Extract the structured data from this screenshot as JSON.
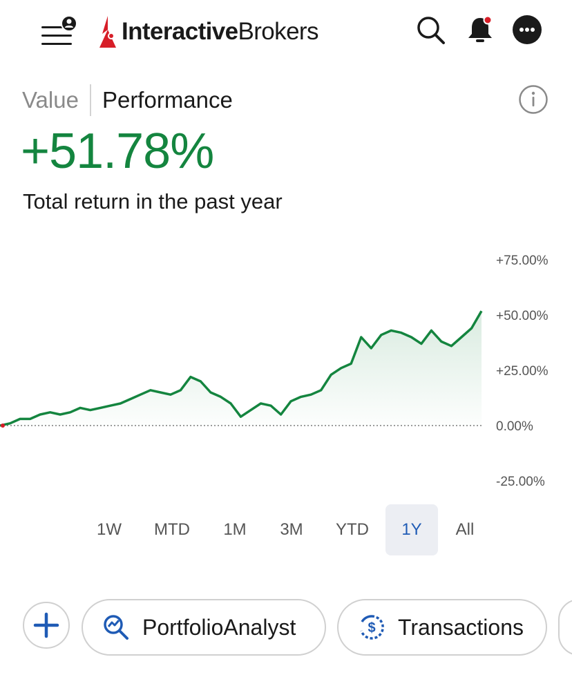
{
  "header": {
    "logo_bold": "Interactive",
    "logo_regular": "Brokers",
    "accent_color": "#d71e28"
  },
  "view_toggle": {
    "value_label": "Value",
    "performance_label": "Performance"
  },
  "performance": {
    "total_return": "+51.78%",
    "description": "Total return in the past year",
    "positive_color": "#14853f"
  },
  "chart_data": {
    "type": "area",
    "ylim": [
      -25,
      75
    ],
    "y_ticks": [
      "+75.00%",
      "+50.00%",
      "+25.00%",
      "0.00%",
      "-25.00%"
    ],
    "y_tick_values": [
      75,
      50,
      25,
      0,
      -25
    ],
    "baseline": 0,
    "series": [
      {
        "color": "#14853f",
        "values": [
          0,
          1,
          3,
          3,
          5,
          6,
          5,
          6,
          8,
          7,
          8,
          9,
          10,
          12,
          14,
          16,
          15,
          14,
          16,
          22,
          20,
          15,
          13,
          10,
          4,
          7,
          10,
          9,
          5,
          11,
          13,
          14,
          16,
          23,
          26,
          28,
          40,
          35,
          41,
          43,
          42,
          40,
          37,
          43,
          38,
          36,
          40,
          44,
          51.78
        ]
      }
    ]
  },
  "range_tabs": [
    {
      "label": "1W"
    },
    {
      "label": "MTD"
    },
    {
      "label": "1M"
    },
    {
      "label": "3M"
    },
    {
      "label": "YTD"
    },
    {
      "label": "1Y",
      "active": true
    },
    {
      "label": "All"
    }
  ],
  "actions": {
    "portfolio_analyst_label": "PortfolioAnalyst",
    "transactions_label": "Transactions",
    "accent_color": "#1f5bb5"
  }
}
